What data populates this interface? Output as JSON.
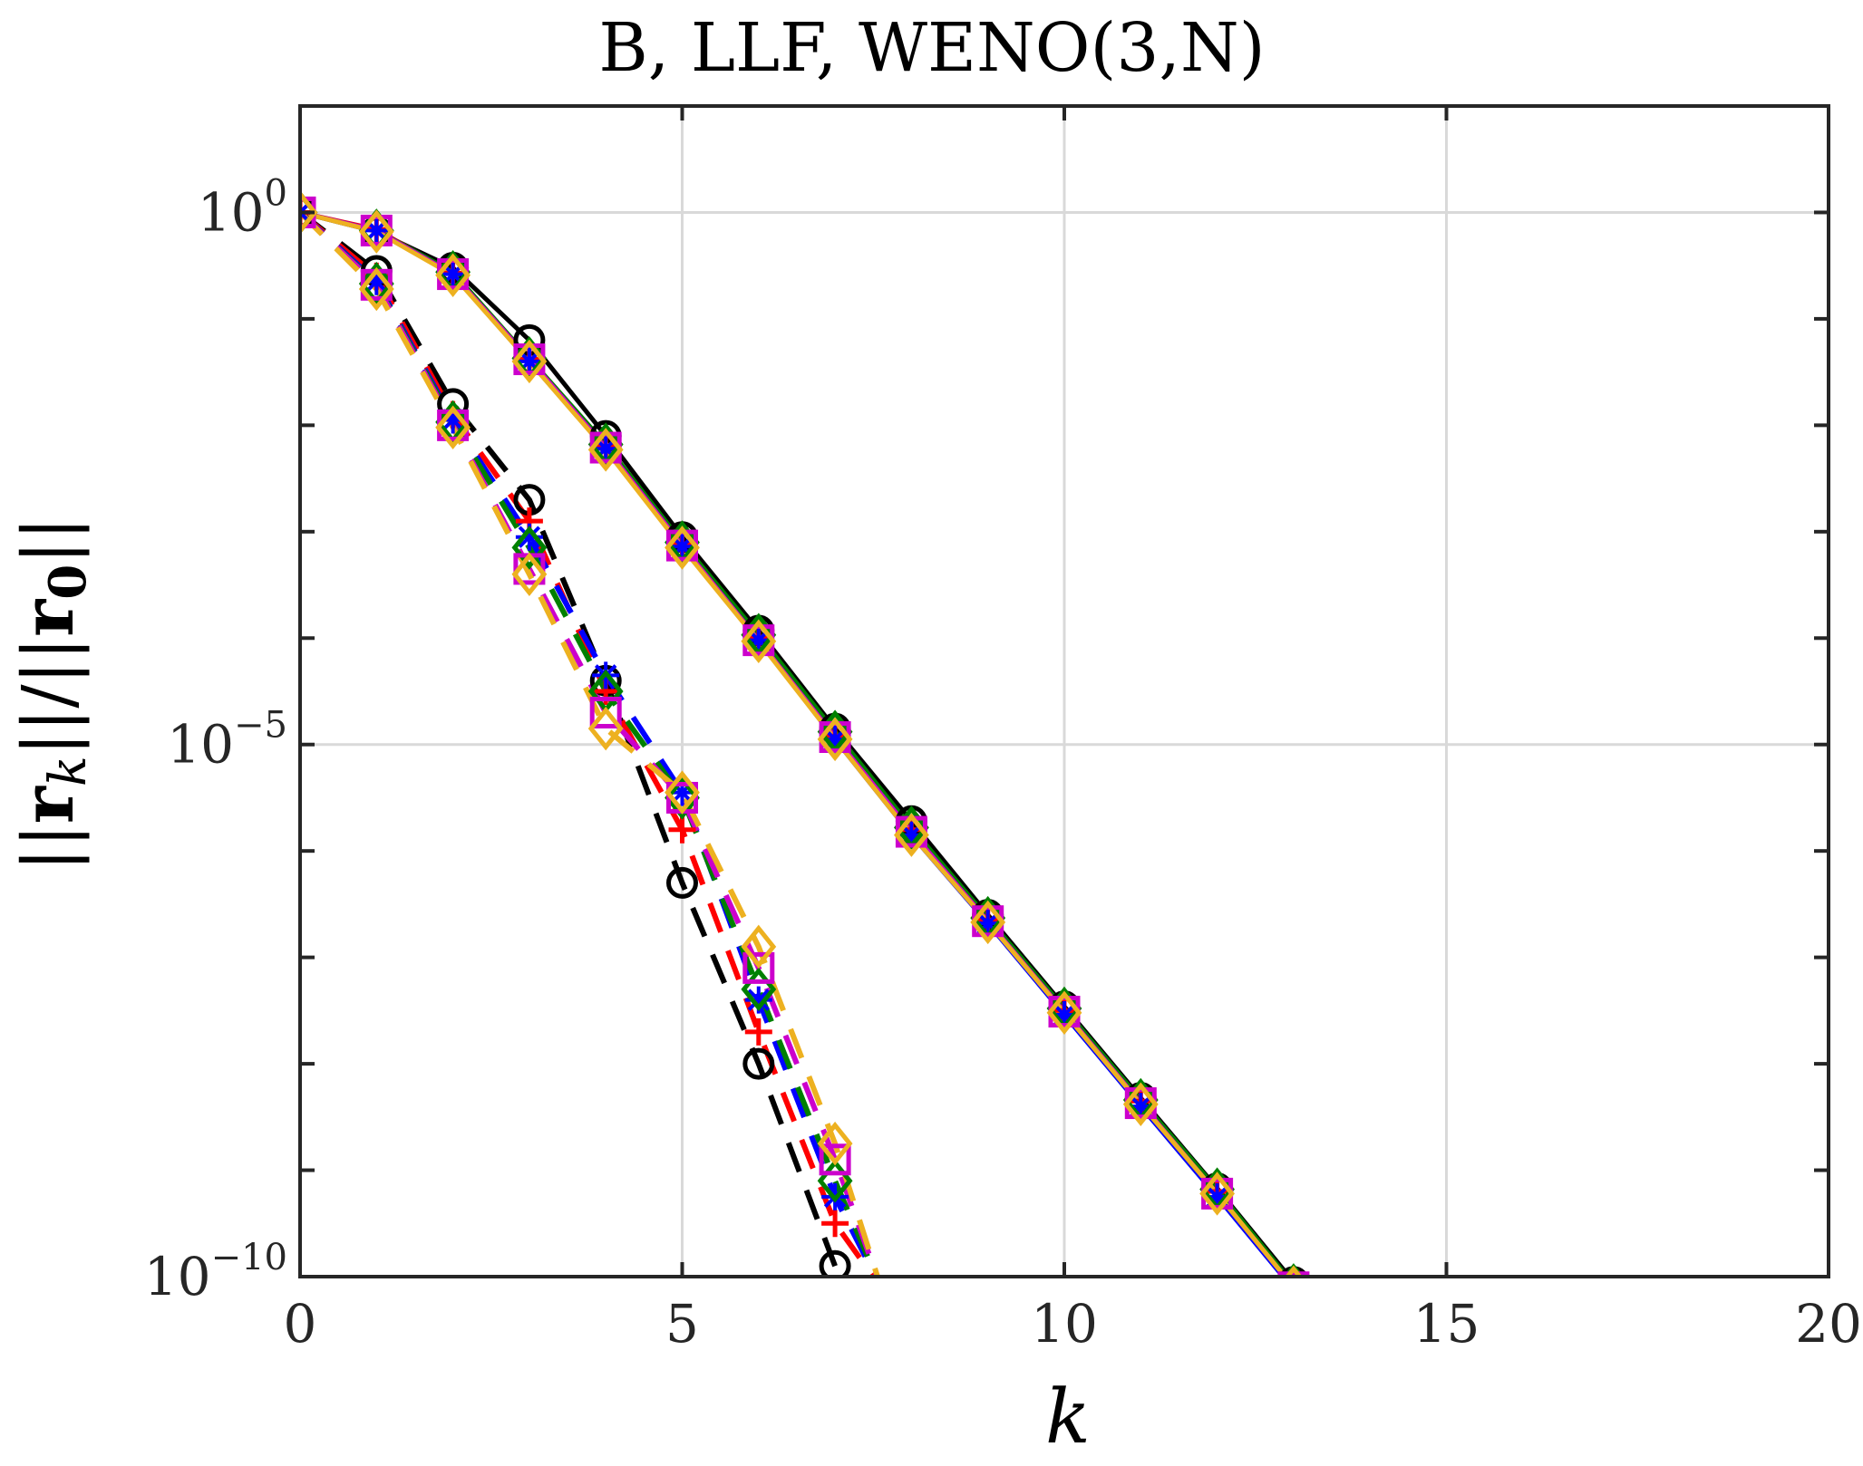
{
  "chart_data": {
    "type": "line",
    "title": "B, LLF, WENO(3,N)",
    "xlabel": "k",
    "ylabel": "||r_k|| / ||r_0||",
    "ylabel_parts": {
      "bar_left": "||",
      "r": "r",
      "k_sub": "k",
      "bar_mid": "||/||",
      "r0": "r",
      "zero_sub": "0",
      "bar_right": "||"
    },
    "xlim": [
      0,
      20
    ],
    "ylim_log10": [
      -10,
      1
    ],
    "yscale": "log",
    "grid": true,
    "x_ticks": [
      "0",
      "5",
      "10",
      "15",
      "20"
    ],
    "y_ticks": [
      {
        "base": "10",
        "exp": "0",
        "log10": 0
      },
      {
        "base": "10",
        "exp": "−5",
        "log10": -5
      },
      {
        "base": "10",
        "exp": "−10",
        "log10": -10
      }
    ],
    "series": [
      {
        "name": "solid black circle",
        "color": "#000000",
        "marker": "circle",
        "dash": false,
        "x": [
          0,
          1,
          2,
          3,
          4,
          5,
          6,
          7,
          8,
          9,
          10,
          11,
          12,
          13
        ],
        "log10_y": [
          0,
          -0.18,
          -0.52,
          -1.2,
          -2.1,
          -3.05,
          -3.93,
          -4.85,
          -5.72,
          -6.6,
          -7.46,
          -8.32,
          -9.17,
          -10.05
        ]
      },
      {
        "name": "solid red plus",
        "color": "#ff0000",
        "marker": "plus",
        "dash": false,
        "x": [
          0,
          1,
          2,
          3,
          4,
          5,
          6,
          7,
          8,
          9,
          10,
          11,
          12,
          13
        ],
        "log10_y": [
          0,
          -0.16,
          -0.57,
          -1.38,
          -2.2,
          -3.12,
          -4.0,
          -4.92,
          -5.8,
          -6.65,
          -7.5,
          -8.35,
          -9.2,
          -10.1
        ]
      },
      {
        "name": "solid blue asterisk",
        "color": "#0000ff",
        "marker": "asterisk",
        "dash": false,
        "x": [
          0,
          1,
          2,
          3,
          4,
          5,
          6,
          7,
          8,
          9,
          10,
          11,
          12,
          13
        ],
        "log10_y": [
          0,
          -0.17,
          -0.58,
          -1.4,
          -2.22,
          -3.14,
          -4.02,
          -4.95,
          -5.85,
          -6.68,
          -7.54,
          -8.4,
          -9.25,
          -10.12
        ]
      },
      {
        "name": "solid green diamond",
        "color": "#008000",
        "marker": "diamond",
        "dash": false,
        "x": [
          0,
          1,
          2,
          3,
          4,
          5,
          6,
          7,
          8,
          9,
          10,
          11,
          12,
          13
        ],
        "log10_y": [
          0,
          -0.17,
          -0.56,
          -1.37,
          -2.18,
          -3.1,
          -3.97,
          -4.88,
          -5.78,
          -6.63,
          -7.48,
          -8.34,
          -9.18,
          -10.08
        ]
      },
      {
        "name": "solid magenta square",
        "color": "#cc00cc",
        "marker": "square",
        "dash": false,
        "x": [
          0,
          1,
          2,
          3,
          4,
          5,
          6,
          7,
          8,
          9,
          10,
          11,
          12,
          13
        ],
        "log10_y": [
          0,
          -0.17,
          -0.58,
          -1.38,
          -2.21,
          -3.13,
          -4.02,
          -4.93,
          -5.82,
          -6.66,
          -7.51,
          -8.37,
          -9.22,
          -10.1
        ]
      },
      {
        "name": "solid orange diamond",
        "color": "#edb120",
        "marker": "diamond",
        "dash": false,
        "x": [
          0,
          1,
          2,
          3,
          4,
          5,
          6,
          7,
          8,
          9,
          10,
          11,
          12,
          13
        ],
        "log10_y": [
          0,
          -0.18,
          -0.59,
          -1.4,
          -2.23,
          -3.15,
          -4.03,
          -4.95,
          -5.85,
          -6.67,
          -7.52,
          -8.38,
          -9.22,
          -10.1
        ]
      },
      {
        "name": "dashed black circle",
        "color": "#000000",
        "marker": "circle",
        "dash": true,
        "x": [
          0,
          1,
          2,
          3,
          4,
          5,
          6,
          7
        ],
        "log10_y": [
          0,
          -0.55,
          -1.8,
          -2.7,
          -4.4,
          -6.3,
          -8.0,
          -9.9
        ]
      },
      {
        "name": "dashed red plus",
        "color": "#ff0000",
        "marker": "plus",
        "dash": true,
        "x": [
          0,
          1,
          2,
          3,
          4,
          5,
          6,
          7,
          7.6
        ],
        "log10_y": [
          0,
          -0.6,
          -1.9,
          -2.9,
          -4.5,
          -5.8,
          -7.7,
          -9.5,
          -10.1
        ]
      },
      {
        "name": "dashed blue asterisk",
        "color": "#0000ff",
        "marker": "asterisk",
        "dash": true,
        "x": [
          0,
          1,
          2,
          3,
          4,
          5,
          6,
          7,
          7.6
        ],
        "log10_y": [
          0,
          -0.65,
          -1.95,
          -3.05,
          -4.35,
          -5.45,
          -7.4,
          -9.25,
          -10.1
        ]
      },
      {
        "name": "dashed green diamond",
        "color": "#008000",
        "marker": "diamond",
        "dash": true,
        "x": [
          0,
          1,
          2,
          3,
          4,
          5,
          6,
          7,
          7.6
        ],
        "log10_y": [
          0,
          -0.67,
          -1.97,
          -3.15,
          -4.5,
          -5.5,
          -7.3,
          -9.1,
          -10.1
        ]
      },
      {
        "name": "dashed magenta square",
        "color": "#cc00cc",
        "marker": "square",
        "dash": true,
        "x": [
          0,
          1,
          2,
          3,
          4,
          5,
          6,
          7,
          7.6
        ],
        "log10_y": [
          0,
          -0.68,
          -2.0,
          -3.35,
          -4.7,
          -5.5,
          -7.1,
          -8.9,
          -10.1
        ]
      },
      {
        "name": "dashed orange diamond",
        "color": "#edb120",
        "marker": "diamond",
        "dash": true,
        "x": [
          0,
          1,
          2,
          3,
          4,
          5,
          6,
          7,
          7.6
        ],
        "log10_y": [
          0,
          -0.72,
          -2.02,
          -3.4,
          -4.85,
          -5.45,
          -6.9,
          -8.75,
          -10.1
        ]
      }
    ]
  }
}
